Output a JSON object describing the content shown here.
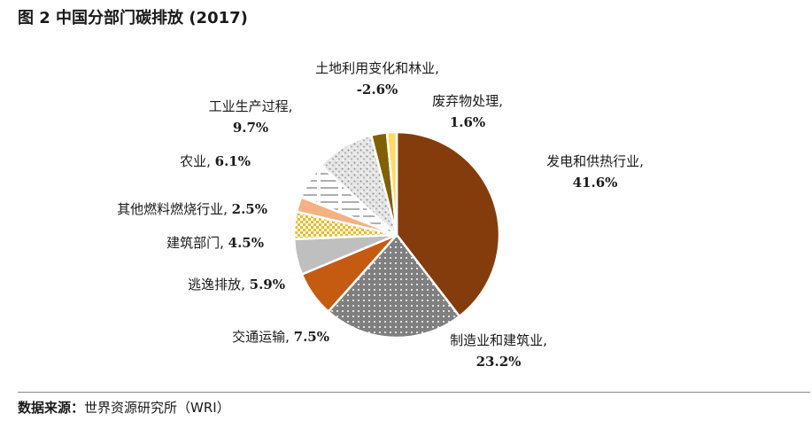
{
  "title": "图 2  中国分部门碳排放 (2017)",
  "source_label": "数据来源：",
  "source_text": "世界资源研究所（WRI）",
  "chart_data": {
    "type": "pie",
    "title": "图 2  中国分部门碳排放 (2017)",
    "slices": [
      {
        "name": "发电和供热行业,",
        "value": 41.6,
        "value_label": "41.6%",
        "color": "#843c0c",
        "pattern": "solid"
      },
      {
        "name": "制造业和建筑业,",
        "value": 23.2,
        "value_label": "23.2%",
        "color": "#7f7f7f",
        "pattern": "dots"
      },
      {
        "name": "交通运输, ",
        "value": 7.5,
        "value_label": "7.5%",
        "color": "#c55a11",
        "pattern": "solid"
      },
      {
        "name": "逃逸排放, ",
        "value": 5.9,
        "value_label": "5.9%",
        "color": "#bfbfbf",
        "pattern": "solid"
      },
      {
        "name": "建筑部门, ",
        "value": 4.5,
        "value_label": "4.5%",
        "color": "#e8b923",
        "pattern": "checker"
      },
      {
        "name": "其他燃料燃烧行业, ",
        "value": 2.5,
        "value_label": "2.5%",
        "color": "#f4b183",
        "pattern": "solid"
      },
      {
        "name": "农业, ",
        "value": 6.1,
        "value_label": "6.1%",
        "color": "#7f7f7f",
        "pattern": "hlines"
      },
      {
        "name": "工业生产过程,",
        "value": 9.7,
        "value_label": "9.7%",
        "color": "#bfbfbf",
        "pattern": "speckle"
      },
      {
        "name": "土地利用变化和林业,",
        "value": -2.6,
        "value_label": "-2.6%",
        "color": "#806000",
        "pattern": "solid"
      },
      {
        "name": "废弃物处理,",
        "value": 1.6,
        "value_label": "1.6%",
        "color": "#ffd966",
        "pattern": "solid"
      }
    ]
  }
}
